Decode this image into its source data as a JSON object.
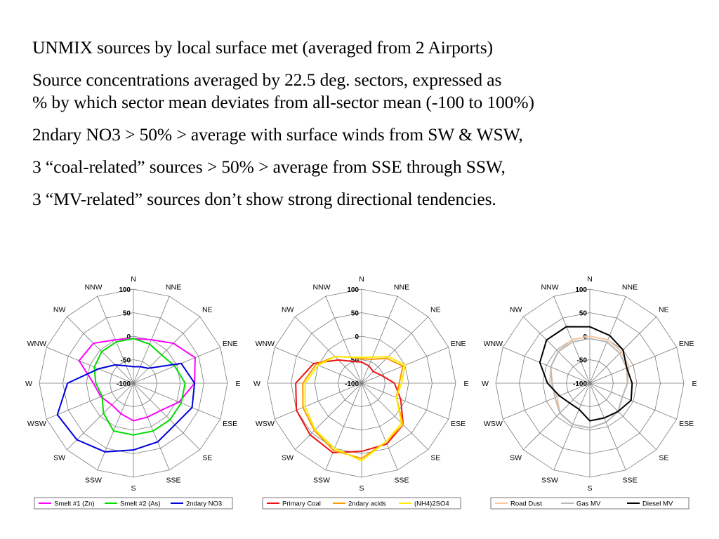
{
  "text": {
    "line1": "UNMIX sources by local surface met (averaged from 2 Airports)",
    "line2": "Source concentrations averaged by 22.5 deg. sectors, expressed as",
    "line3": "% by which sector mean deviates from all-sector mean (-100 to 100%)",
    "line4": "2ndary NO3 > 50% > average with surface winds from SW & WSW,",
    "line5": "3 “coal-related” sources > 50% > average from SSE through SSW,",
    "line6": "3 “MV-related” sources don’t show strong directional tendencies."
  },
  "chart_data": [
    {
      "type": "radar",
      "directions": [
        "N",
        "NNE",
        "NE",
        "ENE",
        "E",
        "ESE",
        "SE",
        "SSE",
        "S",
        "SSW",
        "SW",
        "WSW",
        "W",
        "WNW",
        "NW",
        "NNW"
      ],
      "rlim": [
        -100,
        100
      ],
      "ticks": [
        100,
        50,
        0,
        -50,
        -100
      ],
      "grid": true,
      "legend": "bottom",
      "series": [
        {
          "name": "Smelt #1 (Zn)",
          "color": "#ff00ff",
          "values": [
            -5,
            0,
            20,
            42,
            30,
            5,
            -18,
            -22,
            -20,
            -30,
            -35,
            -25,
            -15,
            25,
            20,
            0
          ]
        },
        {
          "name": "Smelt #2 (As)",
          "color": "#00dd00",
          "values": [
            -5,
            -10,
            -15,
            -5,
            10,
            10,
            10,
            10,
            10,
            10,
            -10,
            -28,
            -20,
            -10,
            -5,
            -5
          ]
        },
        {
          "name": "2ndary NO3",
          "color": "#0000dd",
          "values": [
            -65,
            -62,
            -55,
            10,
            30,
            35,
            25,
            35,
            42,
            58,
            70,
            75,
            40,
            -20,
            -45,
            -60
          ]
        }
      ]
    },
    {
      "type": "radar",
      "directions": [
        "N",
        "NNE",
        "NE",
        "ENE",
        "E",
        "ESE",
        "SE",
        "SSE",
        "S",
        "SSW",
        "SW",
        "WSW",
        "W",
        "WNW",
        "NW",
        "NNW"
      ],
      "rlim": [
        -100,
        100
      ],
      "ticks": [
        100,
        50,
        0,
        -50,
        -100
      ],
      "grid": true,
      "legend": "bottom",
      "series": [
        {
          "name": "Primary Coal",
          "color": "#ee1111",
          "values": [
            -55,
            -60,
            -65,
            -55,
            -30,
            -10,
            25,
            40,
            45,
            60,
            55,
            50,
            40,
            10,
            -30,
            -50
          ]
        },
        {
          "name": "2ndary acids",
          "color": "#ff9900",
          "values": [
            -48,
            -45,
            -25,
            -5,
            -20,
            -20,
            25,
            35,
            60,
            55,
            42,
            35,
            25,
            5,
            -20,
            -40
          ]
        },
        {
          "name": "(NH4)2SO4",
          "color": "#ffee00",
          "values": [
            -45,
            -40,
            -20,
            0,
            -15,
            -20,
            20,
            35,
            65,
            50,
            40,
            30,
            20,
            0,
            -20,
            -40
          ]
        }
      ]
    },
    {
      "type": "radar",
      "directions": [
        "N",
        "NNE",
        "NE",
        "ENE",
        "E",
        "ESE",
        "SE",
        "SSE",
        "S",
        "SSW",
        "SW",
        "WSW",
        "W",
        "WNW",
        "NW",
        "NNW"
      ],
      "rlim": [
        -100,
        100
      ],
      "ticks": [
        100,
        50,
        0,
        -50,
        -100
      ],
      "grid": true,
      "legend": "bottom",
      "series": [
        {
          "name": "Road Dust",
          "color": "#f5c6a0",
          "values": [
            0,
            0,
            -5,
            -10,
            -20,
            -25,
            -15,
            -10,
            -5,
            -5,
            -10,
            -25,
            -15,
            -10,
            -5,
            0
          ]
        },
        {
          "name": "Gas MV",
          "color": "#b8b8b8",
          "values": [
            -5,
            -5,
            -10,
            -15,
            -20,
            -25,
            -15,
            -10,
            -5,
            -5,
            -10,
            -20,
            -20,
            -10,
            -5,
            -5
          ]
        },
        {
          "name": "Diesel MV",
          "color": "#000000",
          "values": [
            20,
            10,
            0,
            -15,
            -10,
            -5,
            -15,
            -20,
            -20,
            -40,
            -40,
            -30,
            -10,
            15,
            30,
            30
          ]
        }
      ]
    }
  ]
}
